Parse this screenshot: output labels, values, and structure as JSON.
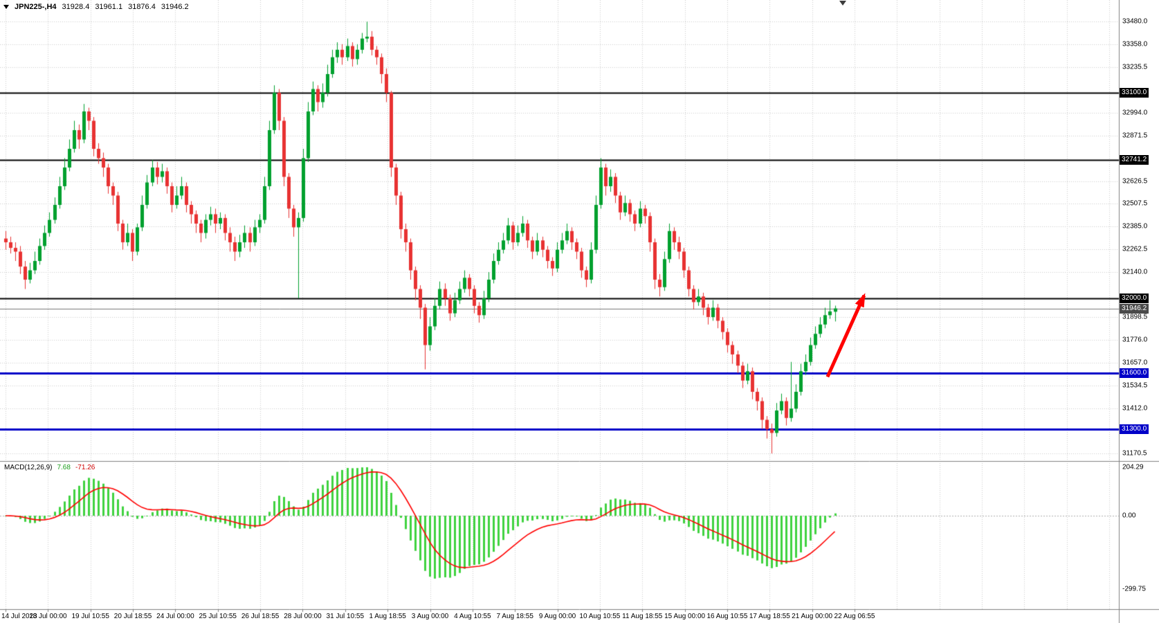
{
  "header": {
    "symbol_timeframe": "JPN225-,H4",
    "open": "31928.4",
    "high": "31961.1",
    "low": "31876.4",
    "close": "31946.2"
  },
  "indicator_display": {
    "label": "MACD(12,26,9)",
    "macd": "7.68",
    "signal": "-71.26",
    "axis_top": "204.29",
    "axis_zero": "0.00",
    "axis_bottom": "-299.75"
  },
  "colors": {
    "bull": "#00A02E",
    "bear": "#E83232",
    "macd_hist": "#3FD23F",
    "macd_signal": "#FF0000",
    "grid": "#CCCCCC",
    "level_black": "#000000",
    "level_blue": "#0000C8",
    "current_price_line": "#777777",
    "badge_current_bg": "#4A4A4A",
    "arrow": "#FF0000"
  },
  "chart_data": {
    "type": "candlestick",
    "symbol": "JPN225-",
    "timeframe": "H4",
    "last_ohlc": {
      "open": 31928.4,
      "high": 31961.1,
      "low": 31876.4,
      "close": 31946.2
    },
    "current_price": 31946.2,
    "y_range": [
      31140,
      33530
    ],
    "y_ticks": [
      33480.0,
      33358.0,
      33235.5,
      32994.0,
      32871.5,
      32626.5,
      32507.5,
      32385.0,
      32262.5,
      32140.0,
      31898.5,
      31776.0,
      31657.0,
      31534.5,
      31412.0,
      31170.5
    ],
    "hlines": [
      {
        "value": 33100.0,
        "color": "#000000",
        "width": 2
      },
      {
        "value": 32741.2,
        "color": "#000000",
        "width": 2
      },
      {
        "value": 32000.0,
        "color": "#000000",
        "width": 2
      },
      {
        "value": 31600.0,
        "color": "#0000C8",
        "width": 3
      },
      {
        "value": 31300.0,
        "color": "#0000C8",
        "width": 3
      }
    ],
    "x_labels": [
      "14 Jul 2023",
      "18 Jul 00:00",
      "19 Jul 10:55",
      "20 Jul 18:55",
      "24 Jul 00:00",
      "25 Jul 10:55",
      "26 Jul 18:55",
      "28 Jul 00:00",
      "31 Jul 10:55",
      "1 Aug 18:55",
      "3 Aug 00:00",
      "4 Aug 10:55",
      "7 Aug 18:55",
      "9 Aug 00:00",
      "10 Aug 10:55",
      "11 Aug 18:55",
      "15 Aug 00:00",
      "16 Aug 10:55",
      "17 Aug 18:55",
      "21 Aug 00:00",
      "22 Aug 06:55"
    ],
    "macd": {
      "label": "MACD(12,26,9)",
      "params": [
        12,
        26,
        9
      ],
      "current_macd": 7.68,
      "current_signal": -71.26,
      "axis_ticks": [
        204.29,
        0.0,
        -299.75
      ]
    },
    "annotation": {
      "type": "arrow",
      "color": "#FF0000",
      "from_index": 168.5,
      "from_price": 31580,
      "to_index": 176,
      "to_price": 32015
    },
    "candles": [
      [
        32320,
        32360,
        32260,
        32300
      ],
      [
        32300,
        32330,
        32240,
        32270
      ],
      [
        32270,
        32300,
        32200,
        32250
      ],
      [
        32250,
        32280,
        32130,
        32170
      ],
      [
        32170,
        32200,
        32050,
        32100
      ],
      [
        32100,
        32190,
        32080,
        32150
      ],
      [
        32150,
        32250,
        32130,
        32200
      ],
      [
        32200,
        32320,
        32180,
        32280
      ],
      [
        32280,
        32390,
        32260,
        32350
      ],
      [
        32350,
        32460,
        32330,
        32420
      ],
      [
        32420,
        32540,
        32400,
        32500
      ],
      [
        32500,
        32650,
        32480,
        32600
      ],
      [
        32600,
        32750,
        32580,
        32700
      ],
      [
        32700,
        32850,
        32680,
        32800
      ],
      [
        32800,
        32950,
        32780,
        32900
      ],
      [
        32900,
        32930,
        32800,
        32850
      ],
      [
        32850,
        33040,
        32830,
        33000
      ],
      [
        33000,
        33020,
        32900,
        32950
      ],
      [
        32950,
        32970,
        32760,
        32800
      ],
      [
        32800,
        32830,
        32720,
        32750
      ],
      [
        32750,
        32780,
        32650,
        32700
      ],
      [
        32700,
        32720,
        32560,
        32600
      ],
      [
        32600,
        32620,
        32500,
        32550
      ],
      [
        32550,
        32570,
        32360,
        32400
      ],
      [
        32400,
        32420,
        32260,
        32300
      ],
      [
        32300,
        32400,
        32280,
        32350
      ],
      [
        32350,
        32370,
        32200,
        32250
      ],
      [
        32250,
        32400,
        32230,
        32380
      ],
      [
        32380,
        32550,
        32360,
        32500
      ],
      [
        32500,
        32660,
        32480,
        32620
      ],
      [
        32620,
        32740,
        32600,
        32700
      ],
      [
        32700,
        32730,
        32610,
        32650
      ],
      [
        32650,
        32720,
        32620,
        32680
      ],
      [
        32680,
        32700,
        32560,
        32600
      ],
      [
        32600,
        32620,
        32460,
        32500
      ],
      [
        32500,
        32600,
        32480,
        32550
      ],
      [
        32550,
        32650,
        32530,
        32600
      ],
      [
        32600,
        32620,
        32460,
        32500
      ],
      [
        32500,
        32520,
        32400,
        32450
      ],
      [
        32450,
        32470,
        32350,
        32400
      ],
      [
        32400,
        32420,
        32300,
        32350
      ],
      [
        32350,
        32450,
        32320,
        32420
      ],
      [
        32420,
        32490,
        32390,
        32450
      ],
      [
        32450,
        32480,
        32350,
        32400
      ],
      [
        32400,
        32460,
        32370,
        32430
      ],
      [
        32430,
        32450,
        32310,
        32350
      ],
      [
        32350,
        32380,
        32250,
        32300
      ],
      [
        32300,
        32330,
        32200,
        32250
      ],
      [
        32250,
        32340,
        32220,
        32300
      ],
      [
        32300,
        32390,
        32270,
        32350
      ],
      [
        32350,
        32380,
        32250,
        32300
      ],
      [
        32300,
        32420,
        32280,
        32380
      ],
      [
        32380,
        32450,
        32350,
        32420
      ],
      [
        32420,
        32650,
        32400,
        32600
      ],
      [
        32600,
        32950,
        32580,
        32900
      ],
      [
        32900,
        33140,
        32880,
        33100
      ],
      [
        33100,
        33120,
        32900,
        32950
      ],
      [
        32950,
        32970,
        32600,
        32650
      ],
      [
        32650,
        32670,
        32430,
        32480
      ],
      [
        32480,
        32500,
        32330,
        32380
      ],
      [
        32380,
        32460,
        32000,
        32430
      ],
      [
        32430,
        32800,
        32410,
        32750
      ],
      [
        32750,
        33050,
        32730,
        33000
      ],
      [
        33000,
        33160,
        32980,
        33120
      ],
      [
        33120,
        33140,
        33000,
        33050
      ],
      [
        33050,
        33150,
        33020,
        33100
      ],
      [
        33100,
        33250,
        33080,
        33200
      ],
      [
        33200,
        33330,
        33180,
        33290
      ],
      [
        33290,
        33370,
        33260,
        33330
      ],
      [
        33330,
        33360,
        33250,
        33290
      ],
      [
        33290,
        33390,
        33270,
        33350
      ],
      [
        33350,
        33370,
        33240,
        33280
      ],
      [
        33280,
        33360,
        33250,
        33330
      ],
      [
        33330,
        33420,
        33310,
        33390
      ],
      [
        33390,
        33480,
        33370,
        33400
      ],
      [
        33400,
        33430,
        33300,
        33330
      ],
      [
        33330,
        33350,
        33250,
        33290
      ],
      [
        33290,
        33310,
        33150,
        33200
      ],
      [
        33200,
        33230,
        33050,
        33100
      ],
      [
        33100,
        33110,
        32650,
        32700
      ],
      [
        32700,
        32720,
        32500,
        32550
      ],
      [
        32550,
        32570,
        32320,
        32370
      ],
      [
        32370,
        32400,
        32250,
        32300
      ],
      [
        32300,
        32320,
        32100,
        32150
      ],
      [
        32150,
        32170,
        31990,
        32050
      ],
      [
        32050,
        32070,
        31890,
        31950
      ],
      [
        31950,
        31970,
        31620,
        31750
      ],
      [
        31750,
        31900,
        31720,
        31850
      ],
      [
        31850,
        32000,
        31830,
        31960
      ],
      [
        31960,
        32090,
        31940,
        32050
      ],
      [
        32050,
        32080,
        31960,
        32000
      ],
      [
        32000,
        32020,
        31880,
        31920
      ],
      [
        31920,
        32030,
        31900,
        31990
      ],
      [
        31990,
        32090,
        31970,
        32050
      ],
      [
        32050,
        32150,
        32030,
        32110
      ],
      [
        32110,
        32130,
        32010,
        32050
      ],
      [
        32050,
        32070,
        31920,
        31960
      ],
      [
        31960,
        31980,
        31870,
        31910
      ],
      [
        31910,
        32040,
        31890,
        32000
      ],
      [
        32000,
        32140,
        31980,
        32100
      ],
      [
        32100,
        32240,
        32080,
        32200
      ],
      [
        32200,
        32300,
        32180,
        32260
      ],
      [
        32260,
        32350,
        32240,
        32310
      ],
      [
        32310,
        32430,
        32290,
        32390
      ],
      [
        32390,
        32410,
        32260,
        32300
      ],
      [
        32300,
        32390,
        32280,
        32350
      ],
      [
        32350,
        32440,
        32330,
        32400
      ],
      [
        32400,
        32420,
        32270,
        32310
      ],
      [
        32310,
        32330,
        32210,
        32250
      ],
      [
        32250,
        32350,
        32230,
        32310
      ],
      [
        32310,
        32330,
        32220,
        32260
      ],
      [
        32260,
        32280,
        32160,
        32200
      ],
      [
        32200,
        32220,
        32120,
        32160
      ],
      [
        32160,
        32300,
        32140,
        32260
      ],
      [
        32260,
        32350,
        32240,
        32310
      ],
      [
        32310,
        32400,
        32290,
        32360
      ],
      [
        32360,
        32380,
        32260,
        32300
      ],
      [
        32300,
        32320,
        32210,
        32250
      ],
      [
        32250,
        32270,
        32110,
        32150
      ],
      [
        32150,
        32170,
        32060,
        32100
      ],
      [
        32100,
        32300,
        32080,
        32260
      ],
      [
        32260,
        32550,
        32240,
        32500
      ],
      [
        32500,
        32750,
        32480,
        32700
      ],
      [
        32700,
        32720,
        32550,
        32600
      ],
      [
        32600,
        32690,
        32570,
        32650
      ],
      [
        32650,
        32670,
        32510,
        32550
      ],
      [
        32550,
        32570,
        32420,
        32460
      ],
      [
        32460,
        32550,
        32440,
        32510
      ],
      [
        32510,
        32530,
        32410,
        32450
      ],
      [
        32450,
        32470,
        32360,
        32400
      ],
      [
        32400,
        32520,
        32380,
        32480
      ],
      [
        32480,
        32500,
        32400,
        32440
      ],
      [
        32440,
        32460,
        32250,
        32300
      ],
      [
        32300,
        32320,
        32050,
        32100
      ],
      [
        32100,
        32130,
        32010,
        32060
      ],
      [
        32060,
        32250,
        32040,
        32210
      ],
      [
        32210,
        32400,
        32190,
        32360
      ],
      [
        32360,
        32380,
        32260,
        32300
      ],
      [
        32300,
        32330,
        32210,
        32250
      ],
      [
        32250,
        32270,
        32110,
        32150
      ],
      [
        32150,
        32170,
        32010,
        32050
      ],
      [
        32050,
        32070,
        31940,
        31980
      ],
      [
        31980,
        32050,
        31960,
        32010
      ],
      [
        32010,
        32030,
        31910,
        31950
      ],
      [
        31950,
        31970,
        31860,
        31900
      ],
      [
        31900,
        31990,
        31880,
        31950
      ],
      [
        31950,
        31970,
        31840,
        31880
      ],
      [
        31880,
        31900,
        31780,
        31820
      ],
      [
        31820,
        31840,
        31710,
        31750
      ],
      [
        31750,
        31770,
        31650,
        31700
      ],
      [
        31700,
        31720,
        31600,
        31640
      ],
      [
        31640,
        31660,
        31520,
        31560
      ],
      [
        31560,
        31650,
        31540,
        31610
      ],
      [
        31610,
        31630,
        31460,
        31500
      ],
      [
        31500,
        31520,
        31400,
        31450
      ],
      [
        31450,
        31470,
        31300,
        31350
      ],
      [
        31350,
        31370,
        31250,
        31300
      ],
      [
        31300,
        31330,
        31170,
        31280
      ],
      [
        31280,
        31440,
        31260,
        31400
      ],
      [
        31400,
        31490,
        31380,
        31450
      ],
      [
        31450,
        31470,
        31320,
        31360
      ],
      [
        31360,
        31660,
        31340,
        31410
      ],
      [
        31410,
        31540,
        31390,
        31500
      ],
      [
        31500,
        31650,
        31480,
        31610
      ],
      [
        31610,
        31700,
        31590,
        31660
      ],
      [
        31660,
        31790,
        31640,
        31750
      ],
      [
        31750,
        31850,
        31730,
        31810
      ],
      [
        31810,
        31900,
        31790,
        31860
      ],
      [
        31860,
        31950,
        31840,
        31910
      ],
      [
        31910,
        31990,
        31890,
        31930
      ],
      [
        31928.4,
        31961.1,
        31876.4,
        31946.2
      ]
    ]
  }
}
